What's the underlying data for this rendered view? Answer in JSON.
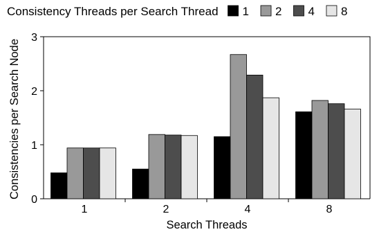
{
  "chart_data": {
    "type": "bar",
    "title": "",
    "xlabel": "Search Threads",
    "ylabel": "Consistencies per Search Node",
    "categories": [
      "1",
      "2",
      "4",
      "8"
    ],
    "ylim": [
      0,
      3
    ],
    "yticks": [
      "0",
      "1",
      "2",
      "3"
    ],
    "grid": false,
    "legend": {
      "title": "Consistency Threads per Search Thread",
      "placement": "top",
      "entries": [
        "1",
        "2",
        "4",
        "8"
      ]
    },
    "series": [
      {
        "name": "1",
        "color": "#000000",
        "values": [
          0.48,
          0.55,
          1.15,
          1.61
        ]
      },
      {
        "name": "2",
        "color": "#999999",
        "values": [
          0.94,
          1.19,
          2.67,
          1.82
        ]
      },
      {
        "name": "4",
        "color": "#4d4d4d",
        "values": [
          0.94,
          1.18,
          2.29,
          1.76
        ]
      },
      {
        "name": "8",
        "color": "#e6e6e6",
        "values": [
          0.94,
          1.17,
          1.87,
          1.66
        ]
      }
    ]
  }
}
